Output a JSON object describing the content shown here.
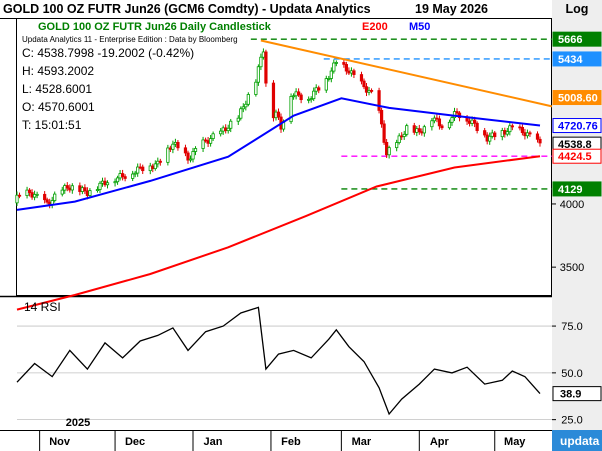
{
  "window": {
    "title": "GOLD 100 OZ FUTR  Jun26 (GCM6 Comdty)  -   Updata Analytics",
    "log_label": "Log",
    "chart_subtitle": "GOLD 100 OZ FUTR  Jun26 Daily Candlestick",
    "legend_e200": "E200",
    "legend_m50": "M50",
    "date": "19 May 2026",
    "edition": "Updata Analytics 11 - Enterprise Edition : Data by Bloomberg",
    "watermark": "updata"
  },
  "ohlc": {
    "close": "C: 4538.7998  -19.2002 (-0.42%)",
    "high": "H: 4593.2002",
    "low": "L: 4528.6001",
    "open": "O: 4570.6001",
    "time": "T: 15:01:51"
  },
  "colors": {
    "e200": "#ff0000",
    "m50": "#0000ff",
    "trend": "#ff8c00",
    "support_green": "#008000",
    "magenta": "#ff00ff",
    "blue_dash": "#1e90ff",
    "up_candle": "#00a000",
    "down_candle": "#e00000"
  },
  "chart_data": [
    {
      "type": "line",
      "title": "GOLD 100 OZ FUTR  Jun26 Daily Candlestick",
      "scale": "log",
      "ylim": [
        3300,
        5900
      ],
      "y_ticks": [
        3500,
        4000
      ],
      "x_labels": [
        "Nov",
        "Dec",
        "Jan",
        "Feb",
        "Mar",
        "Apr",
        "May"
      ],
      "year_label": "2025",
      "start_date": "2025-10-23",
      "end_date": "2026-05-19",
      "grid": false,
      "series": [
        {
          "name": "Price",
          "points": [
            [
              "2025-10-23",
              4050
            ],
            [
              "2025-10-28",
              4100
            ],
            [
              "2025-11-04",
              4000
            ],
            [
              "2025-11-12",
              4150
            ],
            [
              "2025-11-20",
              4100
            ],
            [
              "2025-11-28",
              4200
            ],
            [
              "2025-12-05",
              4250
            ],
            [
              "2025-12-12",
              4320
            ],
            [
              "2025-12-18",
              4350
            ],
            [
              "2025-12-24",
              4550
            ],
            [
              "2025-12-30",
              4400
            ],
            [
              "2026-01-05",
              4550
            ],
            [
              "2026-01-12",
              4650
            ],
            [
              "2026-01-19",
              4800
            ],
            [
              "2026-01-26",
              5200
            ],
            [
              "2026-01-29",
              5550
            ],
            [
              "2026-01-31",
              4800
            ],
            [
              "2026-02-03",
              4850
            ],
            [
              "2026-02-05",
              4700
            ],
            [
              "2026-02-09",
              5050
            ],
            [
              "2026-02-16",
              5000
            ],
            [
              "2026-02-23",
              5200
            ],
            [
              "2026-02-27",
              5400
            ],
            [
              "2026-03-04",
              5300
            ],
            [
              "2026-03-09",
              5150
            ],
            [
              "2026-03-13",
              5050
            ],
            [
              "2026-03-16",
              4850
            ],
            [
              "2026-03-19",
              4450
            ],
            [
              "2026-03-23",
              4550
            ],
            [
              "2026-03-27",
              4700
            ],
            [
              "2026-04-01",
              4650
            ],
            [
              "2026-04-06",
              4800
            ],
            [
              "2026-04-10",
              4720
            ],
            [
              "2026-04-16",
              4850
            ],
            [
              "2026-04-22",
              4750
            ],
            [
              "2026-04-28",
              4600
            ],
            [
              "2026-05-04",
              4650
            ],
            [
              "2026-05-08",
              4700
            ],
            [
              "2026-05-13",
              4650
            ],
            [
              "2026-05-19",
              4538.8
            ]
          ]
        },
        {
          "name": "E200",
          "points": [
            [
              "2025-10-23",
              3200
            ],
            [
              "2025-11-15",
              3300
            ],
            [
              "2025-12-15",
              3450
            ],
            [
              "2026-01-15",
              3650
            ],
            [
              "2026-02-15",
              3900
            ],
            [
              "2026-03-15",
              4150
            ],
            [
              "2026-04-15",
              4320
            ],
            [
              "2026-05-19",
              4424.5
            ]
          ]
        },
        {
          "name": "M50",
          "points": [
            [
              "2025-10-23",
              3950
            ],
            [
              "2025-11-15",
              4020
            ],
            [
              "2025-12-15",
              4200
            ],
            [
              "2026-01-15",
              4420
            ],
            [
              "2026-02-10",
              4820
            ],
            [
              "2026-03-01",
              5000
            ],
            [
              "2026-03-20",
              4900
            ],
            [
              "2026-04-15",
              4820
            ],
            [
              "2026-05-19",
              4720.76
            ]
          ]
        }
      ],
      "levels": [
        {
          "label": "5666",
          "value": 5666,
          "style": "green-dash"
        },
        {
          "label": "5434",
          "value": 5434,
          "style": "blue-dash"
        },
        {
          "label": "5008.60",
          "value": 5008.6,
          "style": "trendline-end"
        },
        {
          "label": "4720.76",
          "value": 4720.76,
          "style": "m50-end"
        },
        {
          "label": "4538.8",
          "value": 4538.8,
          "style": "price"
        },
        {
          "label": "4424.5",
          "value": 4424.5,
          "style": "magenta-dash"
        },
        {
          "label": "4129",
          "value": 4129,
          "style": "green-dash"
        }
      ],
      "trendline": {
        "from": [
          "2026-01-28",
          5650
        ],
        "to": [
          "2026-05-19",
          5000
        ]
      }
    },
    {
      "type": "line",
      "title": "14 RSI",
      "ylim": [
        20,
        90
      ],
      "y_ticks": [
        25.0,
        50.0,
        75.0
      ],
      "y_tick_labels": [
        "25.0",
        "50.0",
        "75.0"
      ],
      "series": [
        {
          "name": "14 RSI",
          "points": [
            [
              "2025-10-23",
              45
            ],
            [
              "2025-10-30",
              55
            ],
            [
              "2025-11-06",
              48
            ],
            [
              "2025-11-13",
              62
            ],
            [
              "2025-11-20",
              52
            ],
            [
              "2025-11-27",
              66
            ],
            [
              "2025-12-04",
              58
            ],
            [
              "2025-12-11",
              67
            ],
            [
              "2025-12-18",
              70
            ],
            [
              "2025-12-24",
              74
            ],
            [
              "2025-12-30",
              62
            ],
            [
              "2026-01-06",
              72
            ],
            [
              "2026-01-13",
              75
            ],
            [
              "2026-01-20",
              82
            ],
            [
              "2026-01-27",
              85
            ],
            [
              "2026-01-30",
              52
            ],
            [
              "2026-02-04",
              60
            ],
            [
              "2026-02-10",
              62
            ],
            [
              "2026-02-17",
              58
            ],
            [
              "2026-02-24",
              68
            ],
            [
              "2026-02-27",
              73
            ],
            [
              "2026-03-04",
              64
            ],
            [
              "2026-03-10",
              56
            ],
            [
              "2026-03-16",
              42
            ],
            [
              "2026-03-20",
              28
            ],
            [
              "2026-03-25",
              36
            ],
            [
              "2026-04-01",
              44
            ],
            [
              "2026-04-07",
              52
            ],
            [
              "2026-04-14",
              50
            ],
            [
              "2026-04-20",
              53
            ],
            [
              "2026-04-27",
              44
            ],
            [
              "2026-05-04",
              46
            ],
            [
              "2026-05-08",
              51
            ],
            [
              "2026-05-13",
              48
            ],
            [
              "2026-05-19",
              38.9
            ]
          ]
        }
      ],
      "last_value_label": "38.9"
    }
  ]
}
